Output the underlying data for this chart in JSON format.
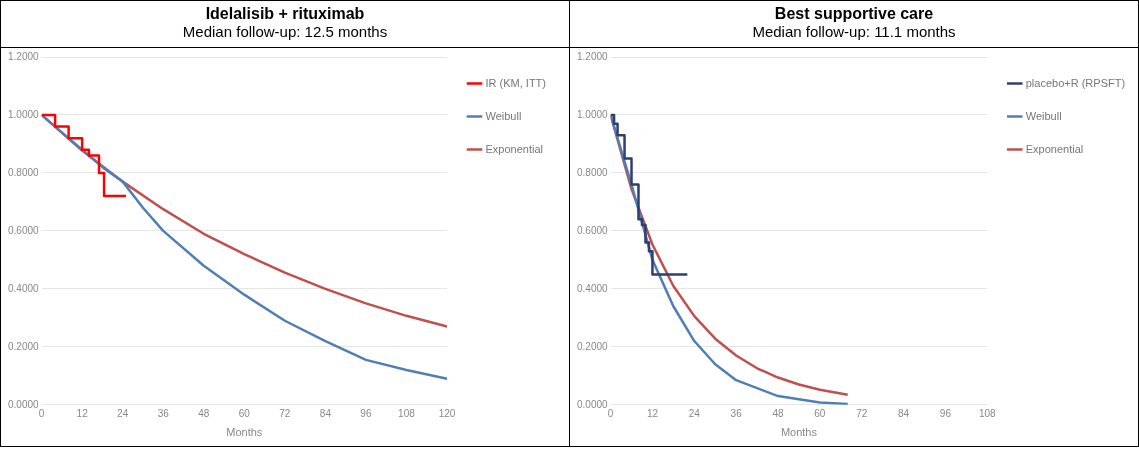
{
  "chart_data": [
    {
      "type": "line",
      "title": "Idelalisib + rituximab",
      "subtitle": "Median follow-up: 12.5 months",
      "xlabel": "Months",
      "xlim": [
        0,
        120
      ],
      "xticks": [
        0,
        12,
        24,
        36,
        48,
        60,
        72,
        84,
        96,
        108,
        120
      ],
      "ylim": [
        0,
        1.2
      ],
      "yticks": [
        {
          "value": 0,
          "label": "0.0000"
        },
        {
          "value": 0.2,
          "label": "0.2000"
        },
        {
          "value": 0.4,
          "label": "0.4000"
        },
        {
          "value": 0.6,
          "label": "0.6000"
        },
        {
          "value": 0.8,
          "label": "0.8000"
        },
        {
          "value": 1,
          "label": "1.0000"
        },
        {
          "value": 1.2,
          "label": "1.2000"
        }
      ],
      "grid": "y",
      "legend": "top right",
      "marker": "none",
      "series": [
        {
          "name": "IR (KM, ITT)",
          "type": "step",
          "color": "#ff0000",
          "x": [
            0,
            4,
            8,
            12,
            14,
            16,
            17,
            18.5,
            25
          ],
          "values": [
            1,
            0.96,
            0.92,
            0.88,
            0.86,
            0.86,
            0.8,
            0.72,
            0.72
          ]
        },
        {
          "name": "Weibull",
          "color": "#4f7fb5",
          "x": [
            0,
            6,
            12,
            18,
            24,
            30,
            36,
            48,
            60,
            72,
            84,
            96,
            108,
            120
          ],
          "values": [
            1,
            0.94,
            0.88,
            0.82,
            0.77,
            0.68,
            0.6,
            0.48,
            0.38,
            0.29,
            0.22,
            0.155,
            0.12,
            0.09
          ]
        },
        {
          "name": "Exponential",
          "color": "#c0504d",
          "x": [
            0,
            12,
            24,
            36,
            48,
            60,
            72,
            84,
            96,
            108,
            120
          ],
          "values": [
            1,
            0.877,
            0.77,
            0.675,
            0.59,
            0.52,
            0.456,
            0.4,
            0.35,
            0.307,
            0.27
          ]
        }
      ]
    },
    {
      "type": "line",
      "title": "Best supportive care",
      "subtitle": "Median follow-up: 11.1 months",
      "xlabel": "Months",
      "xlim": [
        0,
        108
      ],
      "xticks": [
        0,
        12,
        24,
        36,
        48,
        60,
        72,
        84,
        96,
        108
      ],
      "ylim": [
        0,
        1.2
      ],
      "yticks": [
        {
          "value": 0,
          "label": "0.0000"
        },
        {
          "value": 0.2,
          "label": "0.2000"
        },
        {
          "value": 0.4,
          "label": "0.4000"
        },
        {
          "value": 0.6,
          "label": "0.6000"
        },
        {
          "value": 0.8,
          "label": "0.8000"
        },
        {
          "value": 1,
          "label": "1.0000"
        },
        {
          "value": 1.2,
          "label": "1.2000"
        }
      ],
      "grid": "y",
      "legend": "top right",
      "marker": "none",
      "series": [
        {
          "name": "placebo+R (RPSFT)",
          "type": "step",
          "color": "#2e3f6e",
          "x": [
            0,
            1,
            2,
            4,
            6,
            8,
            9,
            10,
            11,
            12,
            22
          ],
          "values": [
            1,
            0.97,
            0.93,
            0.85,
            0.76,
            0.64,
            0.62,
            0.56,
            0.53,
            0.45,
            0.45
          ]
        },
        {
          "name": "Weibull",
          "color": "#4f7fb5",
          "x": [
            0,
            6,
            12,
            18,
            24,
            30,
            36,
            48,
            60,
            68
          ],
          "values": [
            1,
            0.76,
            0.5,
            0.34,
            0.22,
            0.14,
            0.085,
            0.03,
            0.008,
            0.003
          ]
        },
        {
          "name": "Exponential",
          "color": "#c0504d",
          "x": [
            0,
            6,
            12,
            18,
            24,
            30,
            36,
            42,
            48,
            54,
            60,
            68
          ],
          "values": [
            1,
            0.744,
            0.553,
            0.41,
            0.306,
            0.228,
            0.17,
            0.126,
            0.094,
            0.07,
            0.052,
            0.035
          ]
        }
      ]
    }
  ]
}
